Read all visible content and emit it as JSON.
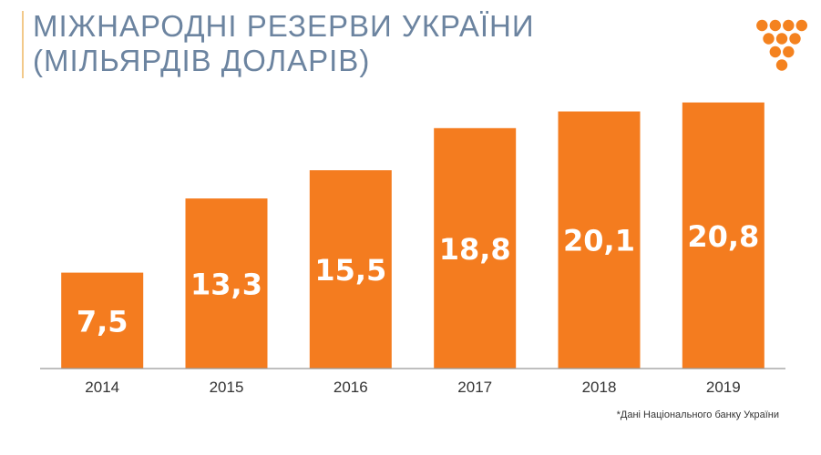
{
  "title": {
    "line1": "МІЖНАРОДНІ РЕЗЕРВИ УКРАЇНИ",
    "line2": "(МІЛЬЯРДІВ ДОЛАРІВ)"
  },
  "logo": {
    "icon": "orange-dot-triangle-logo",
    "color": "#f4821f"
  },
  "source_note": "*Дані Національного банку України",
  "colors": {
    "bar": "#f47c1f",
    "title": "#6c84a0",
    "axis": "#999999",
    "accent_line": "#f2c98a"
  },
  "chart_data": {
    "type": "bar",
    "categories": [
      "2014",
      "2015",
      "2016",
      "2017",
      "2018",
      "2019"
    ],
    "values": [
      7.5,
      13.3,
      15.5,
      18.8,
      20.1,
      20.8
    ],
    "value_labels": [
      "7,5",
      "13,3",
      "15,5",
      "18,8",
      "20,1",
      "20,8"
    ],
    "ylim": [
      0,
      21.7
    ],
    "grid": false,
    "legend": "none"
  }
}
